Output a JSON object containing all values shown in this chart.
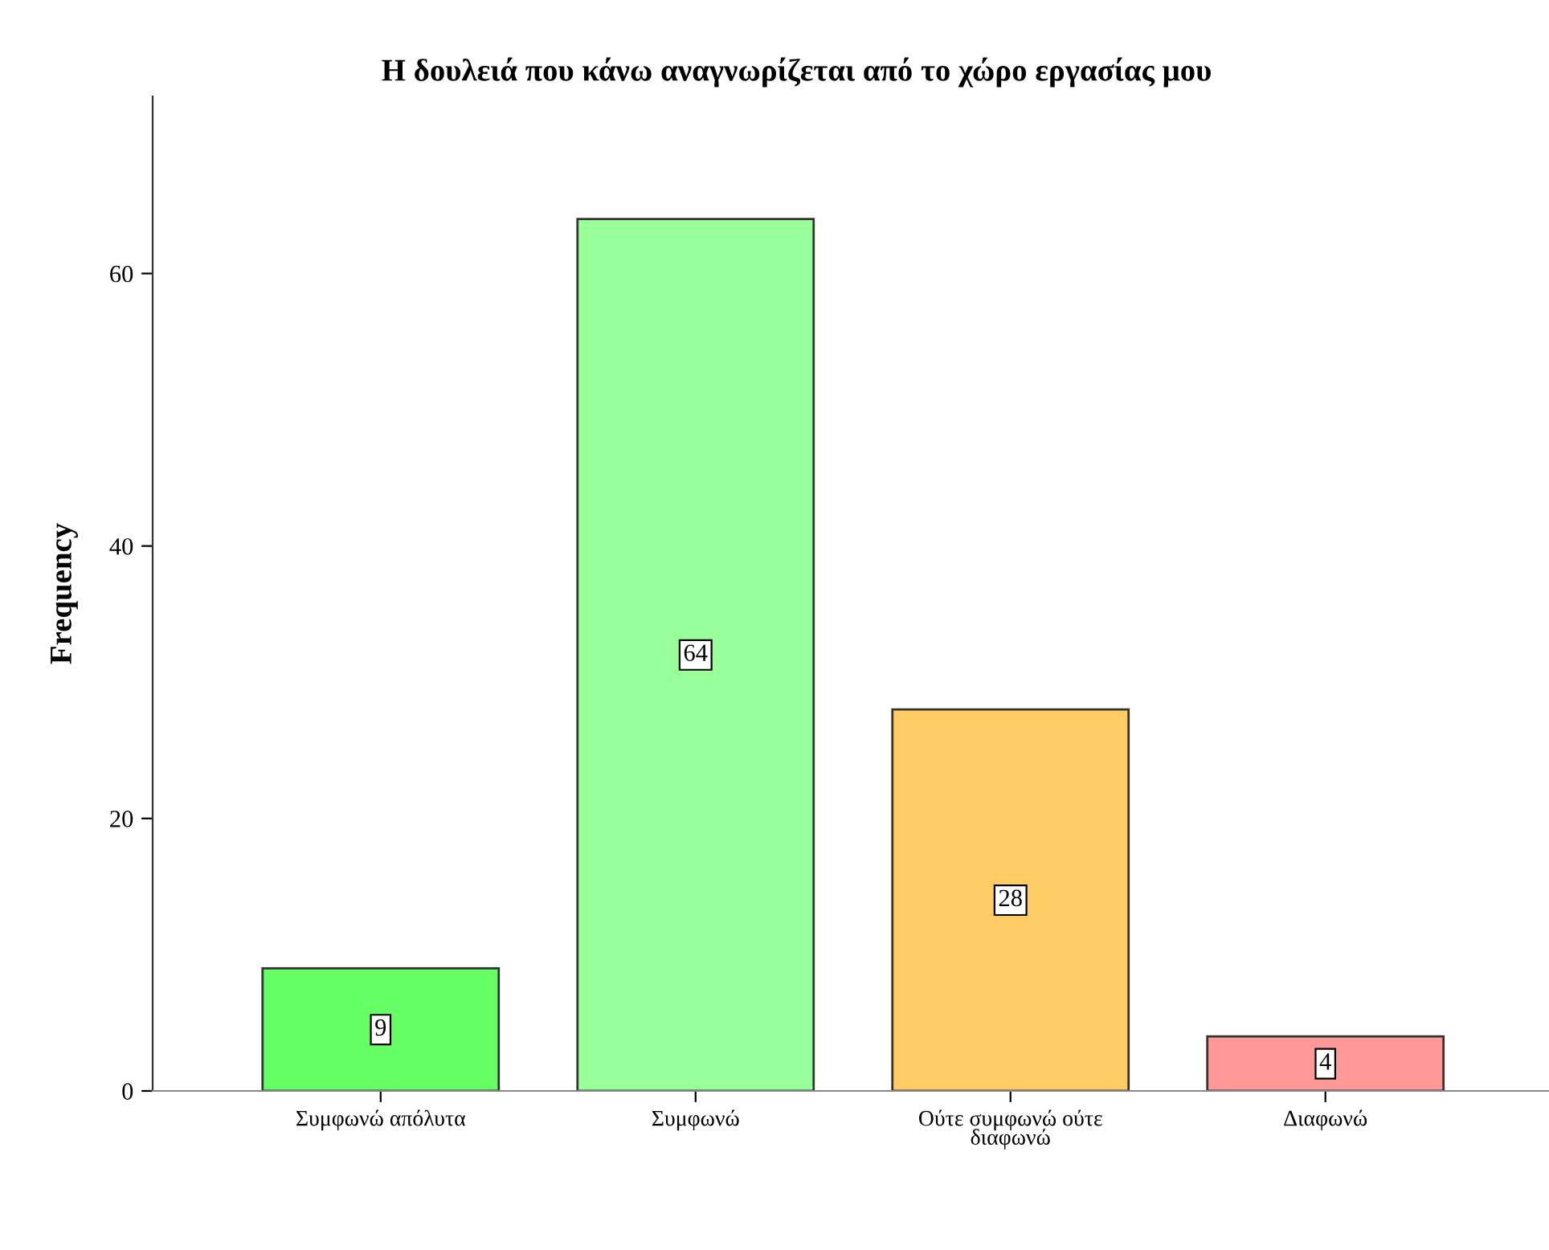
{
  "chart_data": {
    "type": "bar",
    "title": "Η δουλειά που κάνω αναγνωρίζεται από το χώρο εργασίας μου",
    "ylabel": "Frequency",
    "categories": [
      "Συμφωνώ απόλυτα",
      "Συμφωνώ",
      "Ούτε συμφωνώ ούτε διαφωνώ",
      "Διαφωνώ"
    ],
    "values": [
      9,
      64,
      28,
      4
    ],
    "colors": [
      "#66ff66",
      "#99ff99",
      "#ffcc66",
      "#ff9999"
    ],
    "ylim": [
      0,
      73
    ],
    "yticks": [
      0,
      20,
      40,
      60
    ],
    "grid": false,
    "data_labels": true
  }
}
